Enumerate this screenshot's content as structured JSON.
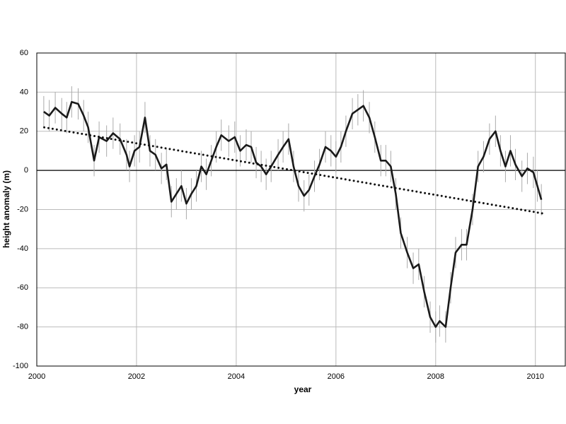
{
  "chart_data": {
    "type": "line",
    "xlabel": "year",
    "ylabel": "height anomaly (m)",
    "xlim": [
      2000,
      2010.6
    ],
    "ylim": [
      -100,
      60
    ],
    "xticks": [
      2000,
      2002,
      2004,
      2006,
      2008,
      2010
    ],
    "yticks": [
      -100,
      -80,
      -60,
      -40,
      -20,
      0,
      20,
      40,
      60
    ],
    "grid": true,
    "x": [
      2000.14,
      2000.25,
      2000.37,
      2000.5,
      2000.6,
      2000.7,
      2000.83,
      2000.94,
      2001.03,
      2001.15,
      2001.25,
      2001.4,
      2001.53,
      2001.67,
      2001.8,
      2001.86,
      2001.96,
      2002.06,
      2002.17,
      2002.27,
      2002.38,
      2002.5,
      2002.6,
      2002.7,
      2002.8,
      2002.9,
      2003.0,
      2003.1,
      2003.2,
      2003.3,
      2003.4,
      2003.5,
      2003.6,
      2003.7,
      2003.85,
      2003.97,
      2004.08,
      2004.2,
      2004.3,
      2004.4,
      2004.5,
      2004.6,
      2004.7,
      2004.84,
      2004.94,
      2005.05,
      2005.15,
      2005.25,
      2005.36,
      2005.46,
      2005.57,
      2005.67,
      2005.79,
      2005.9,
      2006.0,
      2006.1,
      2006.2,
      2006.33,
      2006.44,
      2006.55,
      2006.67,
      2006.78,
      2006.9,
      2007.0,
      2007.1,
      2007.2,
      2007.3,
      2007.43,
      2007.55,
      2007.66,
      2007.77,
      2007.89,
      2008.0,
      2008.08,
      2008.2,
      2008.3,
      2008.4,
      2008.52,
      2008.62,
      2008.74,
      2008.85,
      2008.96,
      2009.08,
      2009.2,
      2009.3,
      2009.4,
      2009.5,
      2009.6,
      2009.73,
      2009.84,
      2009.96,
      2010.04,
      2010.12
    ],
    "series": [
      {
        "color": "#1a1a1a",
        "values": [
          30,
          28,
          32,
          29,
          27,
          35,
          34,
          28,
          22,
          5,
          17,
          15,
          19,
          16,
          8,
          2,
          10,
          12,
          27,
          10,
          8,
          1,
          3,
          -16,
          -12,
          -8,
          -17,
          -12,
          -8,
          2,
          -2,
          5,
          12,
          18,
          15,
          17,
          10,
          13,
          12,
          4,
          2,
          -2,
          2,
          8,
          12,
          16,
          2,
          -8,
          -13,
          -10,
          -3,
          3,
          12,
          10,
          7,
          12,
          20,
          29,
          31,
          33,
          27,
          17,
          5,
          5,
          2,
          -12,
          -32,
          -42,
          -50,
          -48,
          -62,
          -75,
          -80,
          -77,
          -80,
          -60,
          -42,
          -38,
          -38,
          -20,
          2,
          7,
          16,
          20,
          10,
          2,
          10,
          3,
          -3,
          1,
          -1,
          -8,
          -15
        ],
        "errors": [
          8,
          8,
          8,
          8,
          8,
          8,
          8,
          8,
          8,
          8,
          8,
          8,
          8,
          8,
          8,
          8,
          8,
          8,
          8,
          8,
          8,
          8,
          8,
          8,
          8,
          8,
          8,
          8,
          8,
          8,
          8,
          8,
          8,
          8,
          8,
          8,
          8,
          8,
          8,
          8,
          8,
          8,
          8,
          8,
          8,
          8,
          8,
          8,
          8,
          8,
          8,
          8,
          8,
          8,
          8,
          8,
          8,
          8,
          8,
          8,
          8,
          8,
          8,
          8,
          8,
          8,
          8,
          8,
          8,
          8,
          8,
          8,
          8,
          8,
          8,
          8,
          8,
          8,
          8,
          8,
          8,
          8,
          8,
          8,
          8,
          8,
          8,
          8,
          8,
          8,
          8,
          8,
          8
        ]
      }
    ],
    "trend": {
      "color": "#111",
      "x": [
        2000.15,
        2010.15
      ],
      "values": [
        22,
        -22
      ]
    }
  }
}
